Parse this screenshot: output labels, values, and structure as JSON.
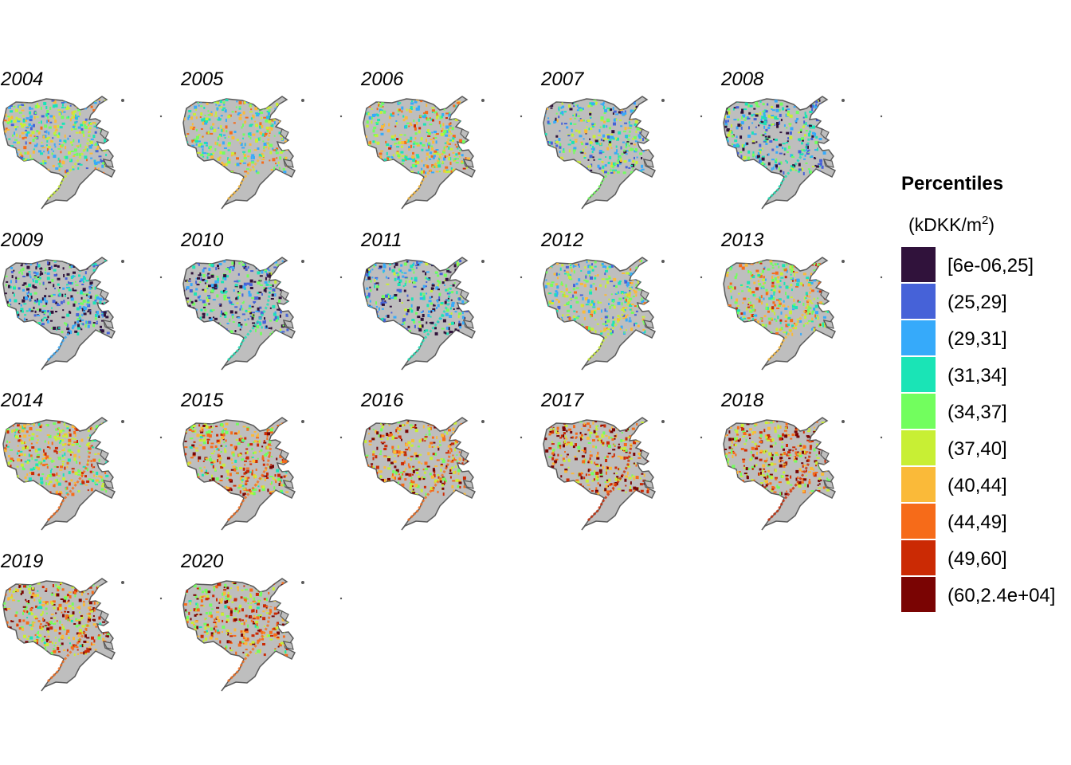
{
  "figure": {
    "panels": [
      "2004",
      "2005",
      "2006",
      "2007",
      "2008",
      "2009",
      "2010",
      "2011",
      "2012",
      "2013",
      "2014",
      "2015",
      "2016",
      "2017",
      "2018",
      "2019",
      "2020"
    ],
    "panel_intensity": [
      0.42,
      0.5,
      0.52,
      0.34,
      0.25,
      0.16,
      0.2,
      0.22,
      0.42,
      0.55,
      0.62,
      0.68,
      0.72,
      0.76,
      0.74,
      0.7,
      0.7
    ]
  },
  "legend": {
    "title": "Percentiles",
    "unit_prefix": "(kDKK/m",
    "unit_sup": "2",
    "unit_suffix": ")",
    "items": [
      {
        "label": "[6e-06,25]",
        "color": "#30123b"
      },
      {
        "label": "(25,29]",
        "color": "#4662d8"
      },
      {
        "label": "(29,31]",
        "color": "#36aafa"
      },
      {
        "label": "(31,34]",
        "color": "#1ae4b6"
      },
      {
        "label": "(34,37]",
        "color": "#72fe5e"
      },
      {
        "label": "(37,40]",
        "color": "#c8ef34"
      },
      {
        "label": "(40,44]",
        "color": "#faba39"
      },
      {
        "label": "(44,49]",
        "color": "#f66b19"
      },
      {
        "label": "(49,60]",
        "color": "#cb2a04"
      },
      {
        "label": "(60,2.4e+04]",
        "color": "#7a0403"
      }
    ]
  },
  "colors": {
    "land": "#bebebe",
    "border": "#595959"
  }
}
